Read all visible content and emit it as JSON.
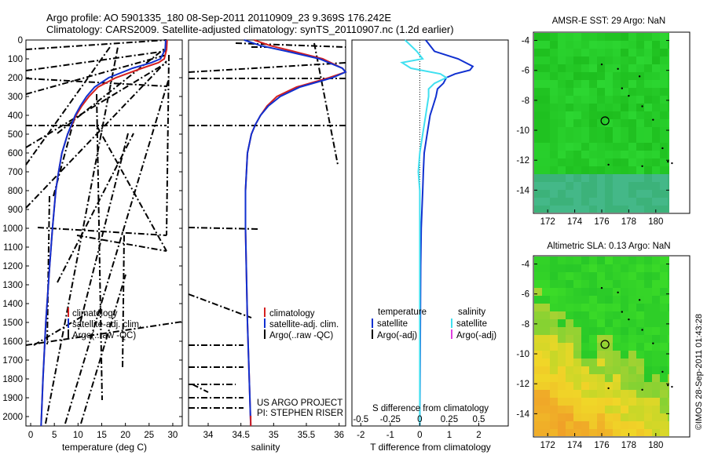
{
  "header": {
    "line1": "Argo profile: AO 5901335_180 08-Sep-2011 20110909_23 9.369S 176.242E",
    "line2": "Climatology: CARS2009. Satellite-adjusted climatology: synTS_20110907.nc (1.2d earlier)"
  },
  "colors": {
    "climatology": "#d42020",
    "satellite": "#1030d0",
    "argo": "#000000",
    "satellite_s": "#40e0f0",
    "argo_adj_s": "#e040e0",
    "sst_field": "#22c822",
    "sla_green": "#30cc30",
    "sla_yellow": "#f0d020",
    "sla_orange": "#f0a030"
  },
  "chart_data": [
    {
      "id": "temperature",
      "type": "line",
      "xlabel": "temperature (deg C)",
      "ylabel": "",
      "xlim": [
        -1,
        32
      ],
      "ylim": [
        2050,
        0
      ],
      "xticks": [
        0,
        5,
        10,
        15,
        20,
        25,
        30
      ],
      "yticks": [
        0,
        100,
        200,
        300,
        400,
        500,
        600,
        700,
        800,
        900,
        1000,
        1100,
        1200,
        1300,
        1400,
        1500,
        1600,
        1700,
        1800,
        1900,
        2000
      ],
      "legend": [
        "climatology",
        "satellite-adj. clim.",
        "Argo(..raw -QC)"
      ],
      "series": [
        {
          "name": "climatology",
          "depth": [
            0,
            50,
            100,
            120,
            150,
            200,
            250,
            300,
            350,
            400,
            450,
            500,
            600,
            700,
            800,
            1000,
            1200,
            1500,
            1800,
            2050
          ],
          "values": [
            28.8,
            28.7,
            28.2,
            27.0,
            23.5,
            18.0,
            14.2,
            12.3,
            10.8,
            9.6,
            8.7,
            7.8,
            6.6,
            5.9,
            5.3,
            4.6,
            4.0,
            3.2,
            2.6,
            2.2
          ]
        },
        {
          "name": "satellite-adj. clim.",
          "depth": [
            0,
            50,
            100,
            120,
            150,
            200,
            250,
            300,
            350,
            400,
            450,
            500,
            600,
            700,
            800,
            1000,
            1200,
            1500,
            1800,
            2050
          ],
          "values": [
            28.5,
            28.4,
            27.4,
            25.5,
            21.5,
            16.5,
            13.5,
            11.8,
            10.5,
            9.4,
            8.6,
            7.8,
            6.6,
            5.9,
            5.3,
            4.6,
            4.0,
            3.2,
            2.6,
            2.2
          ]
        }
      ]
    },
    {
      "id": "salinity",
      "type": "line",
      "xlabel": "salinity",
      "xlim": [
        33.7,
        36.1
      ],
      "ylim": [
        2050,
        0
      ],
      "xticks": [
        34,
        34.5,
        35,
        35.5,
        36
      ],
      "xticklabels": [
        "34",
        "34.5",
        "35",
        "35.5",
        "36"
      ],
      "legend": [
        "climatology",
        "satellite-adj. clim.",
        "Argo(..raw -QC)"
      ],
      "annotation": [
        "US ARGO PROJECT",
        "PI: STEPHEN RISER"
      ],
      "series": [
        {
          "name": "climatology",
          "depth": [
            0,
            30,
            60,
            100,
            150,
            170,
            200,
            250,
            300,
            350,
            400,
            450,
            500,
            600,
            800,
            1000,
            1500,
            2050
          ],
          "values": [
            34.7,
            34.95,
            35.3,
            35.75,
            36.05,
            36.1,
            35.85,
            35.35,
            35.05,
            34.9,
            34.8,
            34.72,
            34.66,
            34.6,
            34.57,
            34.57,
            34.6,
            34.65
          ]
        },
        {
          "name": "satellite-adj. clim.",
          "depth": [
            0,
            30,
            60,
            100,
            150,
            170,
            200,
            250,
            300,
            350,
            400,
            450,
            500,
            600,
            800,
            1000,
            1500,
            2050
          ],
          "values": [
            34.55,
            34.8,
            35.2,
            35.7,
            36.05,
            36.1,
            35.9,
            35.4,
            35.1,
            34.92,
            34.8,
            34.72,
            34.66,
            34.6,
            34.57,
            34.57,
            34.6,
            34.65
          ]
        }
      ]
    },
    {
      "id": "difference",
      "type": "line",
      "xlabel": "T difference from climatology",
      "xlabel_top": "S difference from climatology",
      "xlim": [
        -2.3,
        3.0
      ],
      "ylim": [
        2050,
        0
      ],
      "xticks": [
        -2,
        -1,
        0,
        1,
        2
      ],
      "xticks_s": [
        -0.5,
        -0.25,
        0,
        0.25,
        0.5
      ],
      "xticklabels_s": [
        "-0.5",
        "-0.25",
        "0",
        "0.25",
        "0.5"
      ],
      "legend": {
        "temperature": "temperature",
        "salinity": "salinity",
        "t_sat": "satellite",
        "t_argo": "Argo(-adj)",
        "s_sat": "satellite",
        "s_argo": "Argo(-adj)"
      },
      "series": [
        {
          "name": "T satellite",
          "depth": [
            0,
            60,
            100,
            140,
            160,
            180,
            200,
            230,
            260,
            300,
            350,
            400,
            500,
            600,
            700,
            800,
            1000,
            1200,
            1500,
            1800,
            2050
          ],
          "values": [
            0.2,
            0.5,
            1.3,
            1.8,
            1.7,
            1.2,
            0.9,
            0.8,
            0.6,
            0.55,
            0.45,
            0.35,
            0.25,
            0.15,
            0.12,
            0.1,
            0.05,
            0.03,
            0.02,
            0.01,
            0.0
          ]
        },
        {
          "name": "S satellite (T units)",
          "depth": [
            0,
            60,
            100,
            120,
            150,
            180,
            200,
            230,
            260,
            300,
            400,
            500,
            600,
            700,
            800,
            1000,
            1200,
            1500,
            2050
          ],
          "values": [
            -0.5,
            -0.1,
            0.1,
            -0.6,
            -0.3,
            0.7,
            0.9,
            0.5,
            0.3,
            0.3,
            0.2,
            0.1,
            0.0,
            -0.05,
            0.0,
            0.0,
            0.0,
            0.0,
            0.0
          ]
        }
      ]
    },
    {
      "id": "sst-map",
      "type": "heatmap",
      "title": "AMSR-E SST: 29 Argo: NaN",
      "xlim": [
        171,
        181
      ],
      "ylim": [
        -15.5,
        -3.5
      ],
      "xticks": [
        172,
        174,
        176,
        178,
        180
      ],
      "yticks": [
        -4,
        -6,
        -8,
        -10,
        -12,
        -14
      ],
      "profile_position": [
        176.242,
        -9.369
      ]
    },
    {
      "id": "sla-map",
      "type": "heatmap",
      "title": "Altimetric SLA: 0.13 Argo: NaN",
      "xlim": [
        171,
        181
      ],
      "ylim": [
        -15.5,
        -3.5
      ],
      "xticks": [
        172,
        174,
        176,
        178,
        180
      ],
      "yticks": [
        -4,
        -6,
        -8,
        -10,
        -12,
        -14
      ],
      "profile_position": [
        176.242,
        -9.369
      ]
    }
  ],
  "footer": {
    "credit": "©IMOS 28-Sep-2011 01:43:28"
  }
}
